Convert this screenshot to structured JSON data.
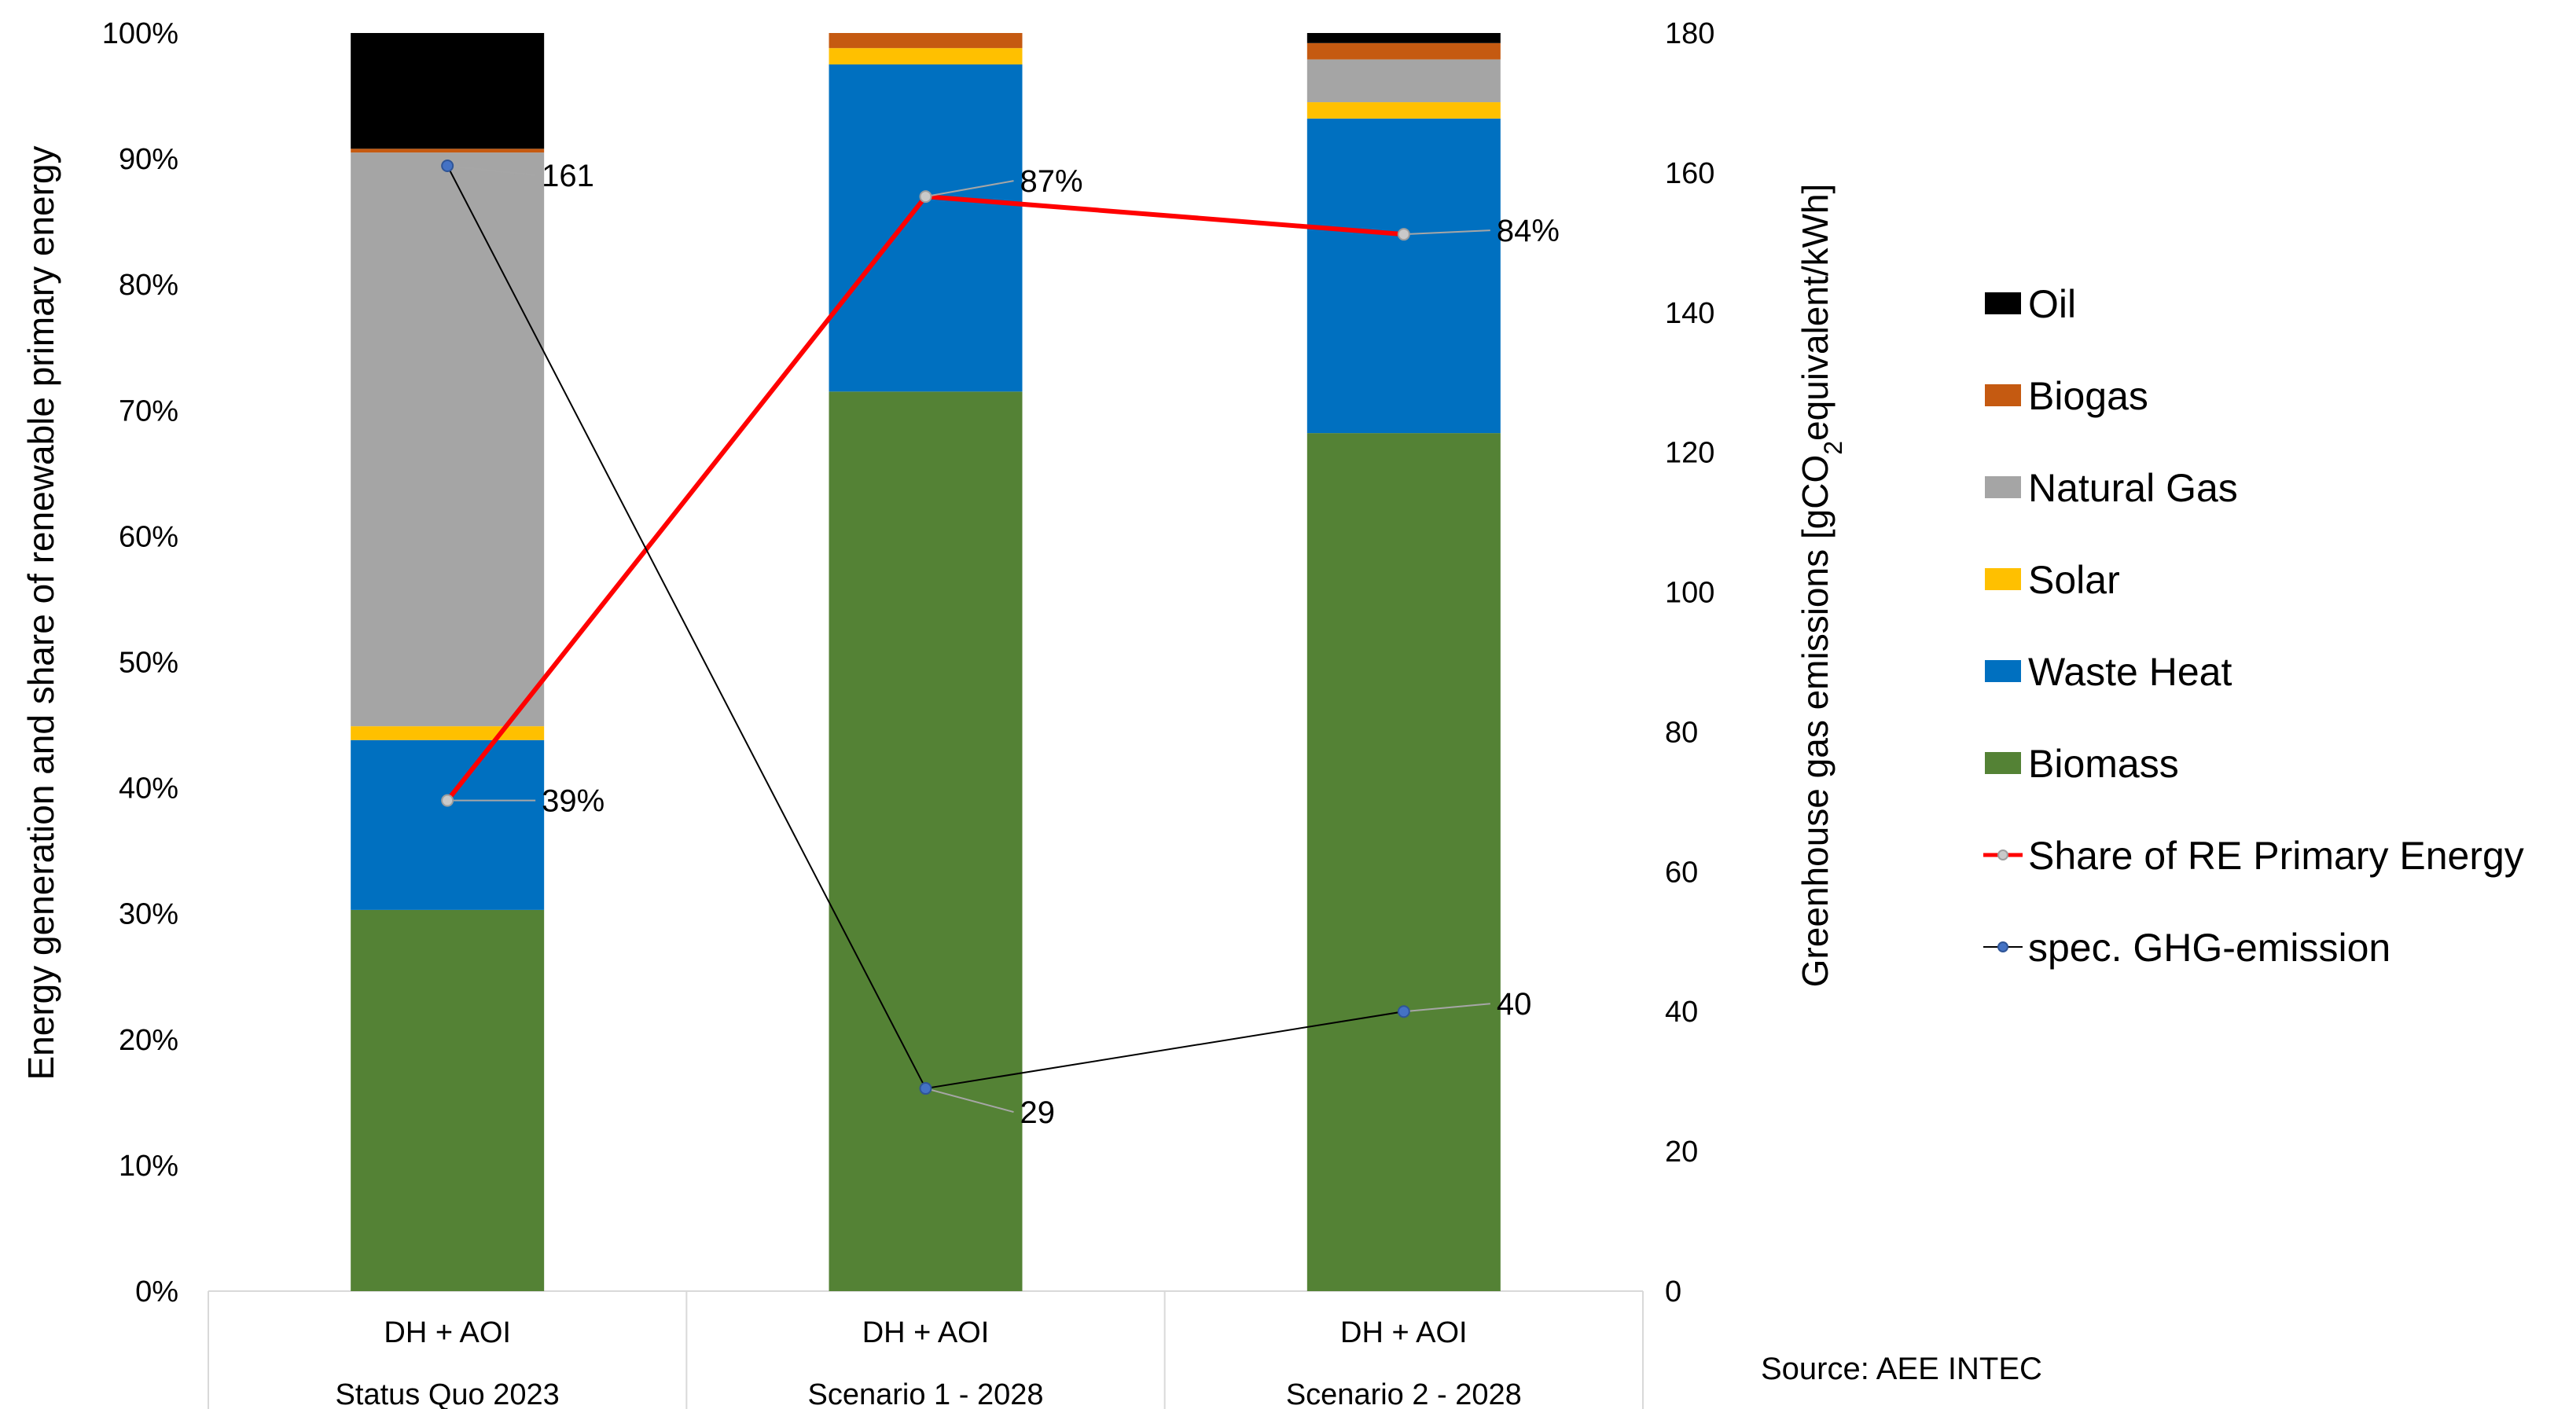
{
  "chart_data": {
    "type": "bar",
    "stacked": true,
    "categories": [
      {
        "top": "DH + AOI",
        "bottom": "Status Quo 2023"
      },
      {
        "top": "DH + AOI",
        "bottom": "Scenario 1  - 2028"
      },
      {
        "top": "DH + AOI",
        "bottom": "Scenario 2  - 2028"
      }
    ],
    "series": [
      {
        "name": "Biomass",
        "color": "#548235",
        "values": [
          30.3,
          71.5,
          68.2
        ]
      },
      {
        "name": "Waste Heat",
        "color": "#0070C0",
        "values": [
          13.5,
          26.0,
          25.0
        ]
      },
      {
        "name": "Solar",
        "color": "#FFC000",
        "values": [
          1.1,
          1.3,
          1.3
        ]
      },
      {
        "name": "Natural Gas",
        "color": "#A5A5A5",
        "values": [
          45.6,
          0.0,
          3.4
        ]
      },
      {
        "name": "Biogas",
        "color": "#C55A11",
        "values": [
          0.3,
          1.2,
          1.3
        ]
      },
      {
        "name": "Oil",
        "color": "#000000",
        "values": [
          9.2,
          0.0,
          0.8
        ]
      }
    ],
    "lines": [
      {
        "name": "Share of RE Primary Energy",
        "color": "#FF0000",
        "axis": "left",
        "values": [
          39,
          87,
          84
        ],
        "labels": [
          "39%",
          "87%",
          "84%"
        ]
      },
      {
        "name": "spec. GHG-emission",
        "color": "#000000",
        "marker_color": "#4472C4",
        "axis": "right",
        "values": [
          161,
          29,
          40
        ],
        "labels": [
          "161",
          "29",
          "40"
        ]
      }
    ],
    "y_left": {
      "label": "Energy generation and share of renewable primary energy",
      "min": 0,
      "max": 100,
      "step": 10,
      "ticks": [
        "0%",
        "10%",
        "20%",
        "30%",
        "40%",
        "50%",
        "60%",
        "70%",
        "80%",
        "90%",
        "100%"
      ]
    },
    "y_right": {
      "label_main": "Greenhouse gas emissions [gCO",
      "label_sub": "2",
      "label_end": "equivalent/kWh]",
      "min": 0,
      "max": 180,
      "step": 20,
      "ticks": [
        "0",
        "20",
        "40",
        "60",
        "80",
        "100",
        "120",
        "140",
        "160",
        "180"
      ]
    },
    "legend": {
      "position": "right",
      "items": [
        "Oil",
        "Biogas",
        "Natural Gas",
        "Solar",
        "Waste Heat",
        "Biomass",
        "Share of RE Primary Energy",
        "spec. GHG-emission"
      ]
    },
    "source": "Source: AEE INTEC"
  }
}
